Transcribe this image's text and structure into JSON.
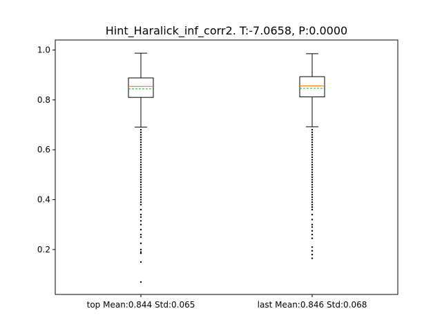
{
  "chart_data": {
    "type": "box",
    "title": "Hint_Haralick_inf_corr2. T:-7.0658, P:0.0000",
    "xlabel": "",
    "ylabel": "",
    "ylim": [
      0.02,
      1.04
    ],
    "yticks": [
      0.2,
      0.4,
      0.6,
      0.8,
      1.0
    ],
    "ytick_labels": [
      "0.2",
      "0.4",
      "0.6",
      "0.8",
      "1.0"
    ],
    "grid": false,
    "series": [
      {
        "name": "top",
        "label": "top Mean:0.844 Std:0.065",
        "whisker_high": 0.987,
        "q3": 0.888,
        "median": 0.854,
        "mean": 0.844,
        "q1": 0.81,
        "whisker_low": 0.691,
        "fliers": [
          0.07,
          0.15,
          0.185,
          0.19,
          0.2,
          0.225,
          0.25,
          0.26,
          0.28,
          0.3,
          0.315,
          0.33,
          0.34,
          0.36,
          0.38,
          0.39,
          0.4,
          0.41,
          0.42,
          0.43,
          0.44,
          0.45,
          0.46,
          0.47,
          0.48,
          0.49,
          0.5,
          0.51,
          0.52,
          0.53,
          0.54,
          0.55,
          0.56,
          0.57,
          0.58,
          0.59,
          0.6,
          0.61,
          0.62,
          0.63,
          0.64,
          0.65,
          0.66,
          0.67,
          0.68
        ]
      },
      {
        "name": "last",
        "label": "last Mean:0.846 Std:0.068",
        "whisker_high": 0.985,
        "q3": 0.893,
        "median": 0.856,
        "mean": 0.846,
        "q1": 0.812,
        "whisker_low": 0.692,
        "fliers": [
          0.165,
          0.18,
          0.195,
          0.21,
          0.245,
          0.26,
          0.275,
          0.29,
          0.3,
          0.32,
          0.34,
          0.36,
          0.37,
          0.38,
          0.39,
          0.4,
          0.41,
          0.42,
          0.43,
          0.44,
          0.45,
          0.46,
          0.47,
          0.48,
          0.49,
          0.5,
          0.51,
          0.52,
          0.53,
          0.54,
          0.55,
          0.56,
          0.57,
          0.58,
          0.59,
          0.6,
          0.61,
          0.62,
          0.63,
          0.64,
          0.65,
          0.66,
          0.67,
          0.68
        ]
      }
    ],
    "colors": {
      "median": "#ff7f0e",
      "mean": "#2ca02c",
      "box": "#000000"
    }
  }
}
